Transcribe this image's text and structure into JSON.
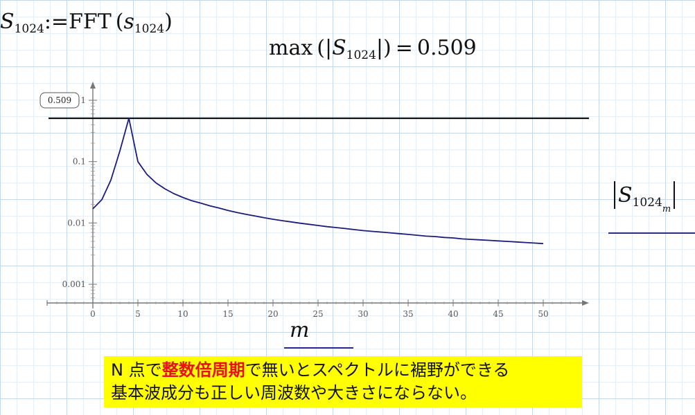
{
  "equations": {
    "fft": {
      "lhs_var": "S",
      "lhs_sub": "1024",
      "op": ":=",
      "fn": "FFT",
      "lparen": "(",
      "arg_var": "s",
      "arg_sub": "1024",
      "rparen": ")"
    },
    "max": {
      "fn": "max",
      "lparen": "(|",
      "var": "S",
      "sub": "1024",
      "rparen": "|)",
      "eq": "=",
      "value": "0.509"
    }
  },
  "chart_data": {
    "type": "line",
    "y_scale": "log",
    "x": [
      0,
      1,
      2,
      3,
      4,
      5,
      6,
      7,
      8,
      9,
      10,
      11,
      12,
      13,
      14,
      15,
      16,
      17,
      18,
      19,
      20,
      21,
      22,
      23,
      24,
      25,
      26,
      27,
      28,
      29,
      30,
      31,
      32,
      33,
      34,
      35,
      36,
      37,
      38,
      39,
      40,
      41,
      42,
      43,
      44,
      45,
      46,
      47,
      48,
      49,
      50
    ],
    "series": [
      {
        "color": "#1b1b7a",
        "values": [
          0.017,
          0.024,
          0.05,
          0.15,
          0.509,
          0.1,
          0.062,
          0.045,
          0.036,
          0.03,
          0.026,
          0.023,
          0.021,
          0.019,
          0.0175,
          0.016,
          0.0148,
          0.0138,
          0.013,
          0.0122,
          0.0115,
          0.0109,
          0.0104,
          0.0099,
          0.0095,
          0.0091,
          0.0087,
          0.0084,
          0.0081,
          0.0078,
          0.0075,
          0.0073,
          0.0071,
          0.0069,
          0.0067,
          0.0065,
          0.0063,
          0.0061,
          0.006,
          0.0058,
          0.0057,
          0.0055,
          0.0054,
          0.0053,
          0.0052,
          0.0051,
          0.005,
          0.0049,
          0.0048,
          0.0047,
          0.0046
        ]
      }
    ],
    "hline": {
      "value": 0.509,
      "color": "#111111",
      "label": "0.509"
    },
    "x_ticks": [
      "0",
      "5",
      "10",
      "15",
      "20",
      "25",
      "30",
      "35",
      "40",
      "45",
      "50"
    ],
    "x_tick_values": [
      0,
      5,
      10,
      15,
      20,
      25,
      30,
      35,
      40,
      45,
      50
    ],
    "y_ticks": [
      "1",
      "0.1",
      "0.01",
      "0.001"
    ],
    "y_tick_values": [
      1,
      0.1,
      0.01,
      0.001
    ],
    "xlim": [
      -5,
      54
    ],
    "ylim": [
      0.0005,
      2
    ],
    "xlabel": "m",
    "ylabel": {
      "bar_l": "|",
      "var": "S",
      "sub": "1024",
      "sub2": "m",
      "bar_r": "|"
    }
  },
  "note": {
    "line1_pre": "N 点で",
    "line1_highlight": "整数倍周期",
    "line1_post": "で無いとスペクトルに裾野ができる",
    "line2": "基本波成分も正しい周波数や大きさにならない。",
    "highlight_color": "#e8101a",
    "background": "#ffff00"
  }
}
